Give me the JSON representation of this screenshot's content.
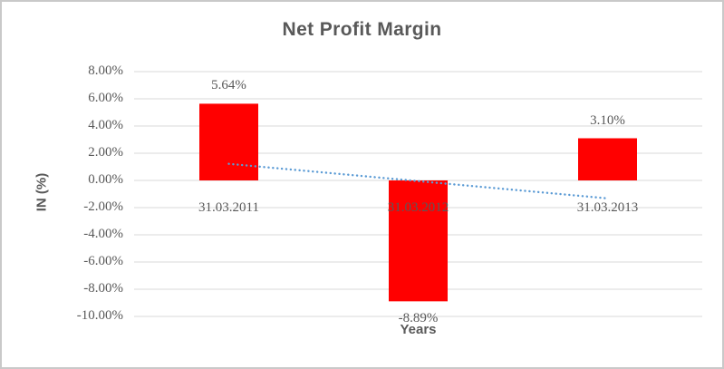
{
  "chart_data": {
    "type": "bar",
    "title": "Net Profit Margin",
    "xlabel": "Years",
    "ylabel": "IN (%)",
    "categories": [
      "31.03.2011",
      "31.03.2012",
      "31.03.2013"
    ],
    "series": [
      {
        "name": "Net Profit Margin",
        "color": "#ff0000",
        "values": [
          5.64,
          -8.89,
          3.1
        ],
        "labels": [
          "5.64%",
          "-8.89%",
          "3.10%"
        ]
      }
    ],
    "ylim": [
      -10,
      8
    ],
    "ytick_step": 2,
    "ytick_labels": [
      "8.00%",
      "6.00%",
      "4.00%",
      "2.00%",
      "0.00%",
      "-2.00%",
      "-4.00%",
      "-6.00%",
      "-8.00%",
      "-10.00%"
    ],
    "grid": true,
    "legend": "none",
    "trendline": {
      "type": "linear",
      "style": "dotted",
      "color": "#5b9bd5",
      "start_value": 1.22,
      "end_value": -1.32
    }
  },
  "colors": {
    "bar": "#ff0000",
    "gridline": "#d9d9d9",
    "text": "#595959",
    "trendline": "#5b9bd5",
    "border": "#c9c9c9",
    "background": "#ffffff"
  }
}
